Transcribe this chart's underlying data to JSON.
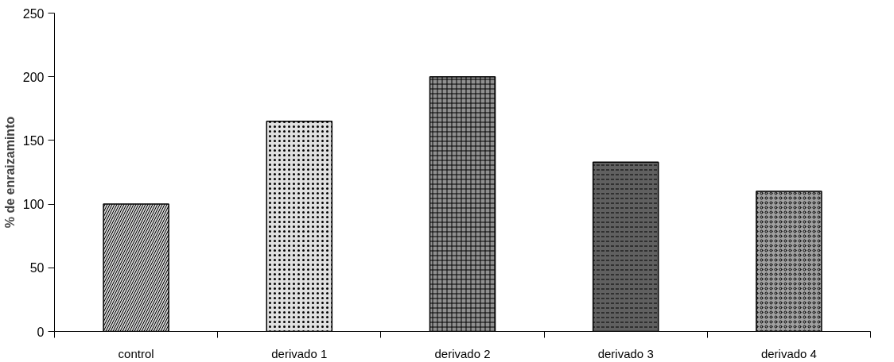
{
  "chart_data": {
    "type": "bar",
    "ylabel": "% de enraizaminto",
    "categories": [
      "control",
      "derivado 1",
      "derivado 2",
      "derivado 3",
      "derivado 4"
    ],
    "values": [
      100,
      165,
      200,
      133,
      110
    ],
    "colors": [
      "#d0d0d0",
      "#e0e0e0",
      "#909090",
      "#606060",
      "#a0a0a0"
    ],
    "ylim": [
      0,
      250
    ],
    "yticks": [
      0,
      50,
      100,
      150,
      200,
      250
    ],
    "grid": false
  }
}
